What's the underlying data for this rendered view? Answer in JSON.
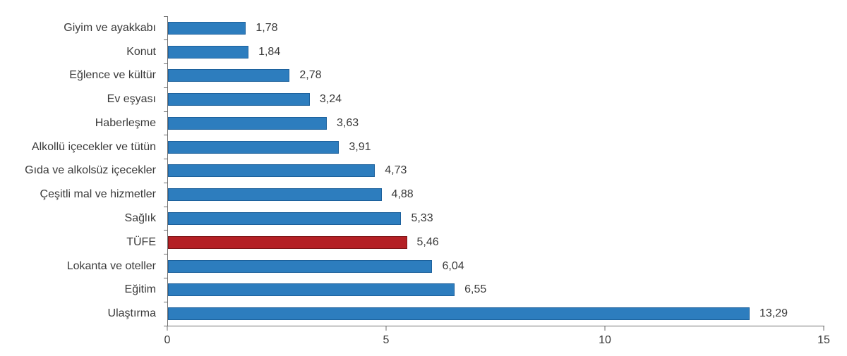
{
  "chart_data": {
    "type": "bar",
    "orientation": "horizontal",
    "title": "",
    "xlabel": "",
    "ylabel": "",
    "grid": false,
    "legend": false,
    "categories": [
      "Giyim ve ayakkabı",
      "Konut",
      "Eğlence ve kültür",
      "Ev eşyası",
      "Haberleşme",
      "Alkollü içecekler ve tütün",
      "Gıda ve alkolsüz içecekler",
      "Çeşitli mal ve hizmetler",
      "Sağlık",
      "TÜFE",
      "Lokanta ve oteller",
      "Eğitim",
      "Ulaştırma"
    ],
    "values": [
      1.78,
      1.84,
      2.78,
      3.24,
      3.63,
      3.91,
      4.73,
      4.88,
      5.33,
      5.46,
      6.04,
      6.55,
      13.29
    ],
    "value_labels": [
      "1,78",
      "1,84",
      "2,78",
      "3,24",
      "3,63",
      "3,91",
      "4,73",
      "4,88",
      "5,33",
      "5,46",
      "6,04",
      "6,55",
      "13,29"
    ],
    "highlight_category": "TÜFE",
    "bar_color": "#2D7DBE",
    "bar_border_color": "#1D619C",
    "highlight_color": "#B42025",
    "highlight_border_color": "#7E1417",
    "axis_color": "#6e6e6e",
    "text_color": "#3a3a3a",
    "xlim": [
      0,
      15
    ],
    "x_ticks": [
      0,
      5,
      10,
      15
    ],
    "x_tick_labels": [
      "0",
      "5",
      "10",
      "15"
    ]
  }
}
